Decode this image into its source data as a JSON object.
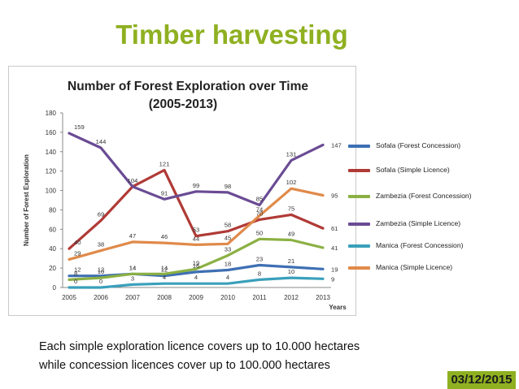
{
  "slide": {
    "title": "Timber harvesting",
    "note_line1": "Each simple exploration licence covers up to 10.000 hectares",
    "note_line2": "while concession licences cover up to 100.000 hectares",
    "date": "03/12/2015",
    "accent_color": "#8fb021"
  },
  "chart_data": {
    "type": "line",
    "title": "Number of Forest Exploration over Time",
    "subtitle": "(2005-2013)",
    "xlabel": "Years",
    "ylabel": "Number of Forest Exploration",
    "x": [
      "2005",
      "2006",
      "2007",
      "2008",
      "2009",
      "2010",
      "2011",
      "2012",
      "2013"
    ],
    "ylim": [
      0,
      180
    ],
    "yticks": [
      0,
      20,
      40,
      60,
      80,
      100,
      120,
      140,
      160,
      180
    ],
    "grid": false,
    "legend_position": "right",
    "series": [
      {
        "name": "Sofala (Forest Concession)",
        "color": "#3e6fb3",
        "values": [
          12,
          12,
          14,
          12,
          16,
          18,
          23,
          21,
          19
        ],
        "labels": [
          "12",
          "12",
          "14",
          "12",
          "16",
          "18",
          "23",
          "21",
          "19"
        ]
      },
      {
        "name": "Sofala (Simple Licence)",
        "color": "#b03a36",
        "values": [
          40,
          69,
          104,
          121,
          53,
          58,
          70,
          75,
          61
        ],
        "labels": [
          "40",
          "69",
          "",
          "121",
          "53",
          "58",
          "70",
          "75",
          "61"
        ]
      },
      {
        "name": "Zambezia (Forest Concession)",
        "color": "#8bb043",
        "values": [
          8,
          10,
          14,
          14,
          19,
          33,
          50,
          49,
          41
        ],
        "labels": [
          "8",
          "10",
          "14",
          "14",
          "19",
          "33",
          "50",
          "49",
          "41"
        ]
      },
      {
        "name": "Zambezia (Simple Licence)",
        "color": "#6a4b94",
        "values": [
          159,
          144,
          104,
          91,
          99,
          98,
          85,
          131,
          147
        ],
        "labels": [
          "159",
          "144",
          "104",
          "91",
          "99",
          "98",
          "85",
          "131",
          "147"
        ]
      },
      {
        "name": "Manica (Forest Concession)",
        "color": "#3aa0bb",
        "values": [
          0,
          0,
          3,
          4,
          4,
          4,
          8,
          10,
          9
        ],
        "labels": [
          "0",
          "0",
          "3",
          "4",
          "4",
          "4",
          "8",
          "10",
          "9"
        ]
      },
      {
        "name": "Manica (Simple Licence)",
        "color": "#e08a4a",
        "values": [
          29,
          38,
          47,
          46,
          44,
          45,
          74,
          102,
          95
        ],
        "labels": [
          "29",
          "38",
          "47",
          "46",
          "44",
          "45",
          "74",
          "102",
          "95"
        ]
      }
    ]
  }
}
